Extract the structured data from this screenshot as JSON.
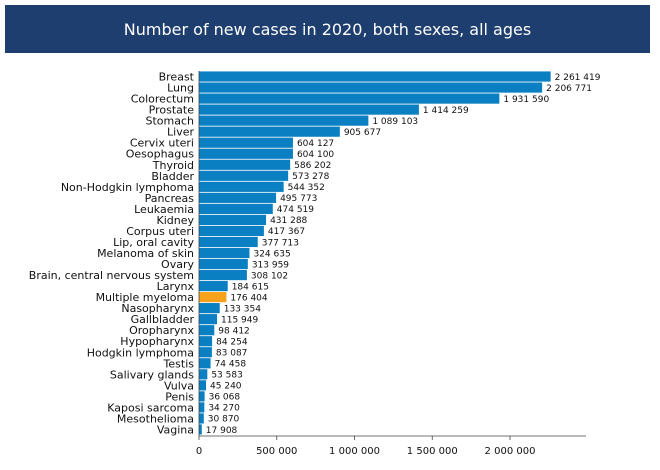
{
  "chart_data": {
    "type": "bar",
    "orientation": "horizontal",
    "title": "Number of new cases in 2020, both sexes, all ages",
    "xlabel": "",
    "ylabel": "",
    "xlim": [
      0,
      2500000
    ],
    "grid": false,
    "legend": "none",
    "bar_color": "#0a7fc2",
    "highlight_color": "#f7a21b",
    "highlight_category": "Multiple myeloma",
    "x_ticks": [
      0,
      500000,
      1000000,
      1500000,
      2000000
    ],
    "x_tick_labels": [
      "0",
      "500 000",
      "1 000 000",
      "1 500 000",
      "2 000 000"
    ],
    "categories": [
      "Breast",
      "Lung",
      "Colorectum",
      "Prostate",
      "Stomach",
      "Liver",
      "Cervix uteri",
      "Oesophagus",
      "Thyroid",
      "Bladder",
      "Non-Hodgkin lymphoma",
      "Pancreas",
      "Leukaemia",
      "Kidney",
      "Corpus uteri",
      "Lip, oral cavity",
      "Melanoma of skin",
      "Ovary",
      "Brain, central nervous system",
      "Larynx",
      "Multiple myeloma",
      "Nasopharynx",
      "Gallbladder",
      "Oropharynx",
      "Hypopharynx",
      "Hodgkin lymphoma",
      "Testis",
      "Salivary glands",
      "Vulva",
      "Penis",
      "Kaposi sarcoma",
      "Mesothelioma",
      "Vagina"
    ],
    "values": [
      2261419,
      2206771,
      1931590,
      1414259,
      1089103,
      905677,
      604127,
      604100,
      586202,
      573278,
      544352,
      495773,
      474519,
      431288,
      417367,
      377713,
      324635,
      313959,
      308102,
      184615,
      176404,
      133354,
      115949,
      98412,
      84254,
      83087,
      74458,
      53583,
      45240,
      36068,
      34270,
      30870,
      17908
    ],
    "value_labels": [
      "2 261 419",
      "2 206 771",
      "1 931 590",
      "1 414 259",
      "1 089 103",
      "905 677",
      "604 127",
      "604 100",
      "586 202",
      "573 278",
      "544 352",
      "495 773",
      "474 519",
      "431 288",
      "417 367",
      "377 713",
      "324 635",
      "313 959",
      "308 102",
      "184 615",
      "176 404",
      "133 354",
      "115 949",
      "98 412",
      "84 254",
      "83 087",
      "74 458",
      "53 583",
      "45 240",
      "36 068",
      "34 270",
      "30 870",
      "17 908"
    ]
  }
}
